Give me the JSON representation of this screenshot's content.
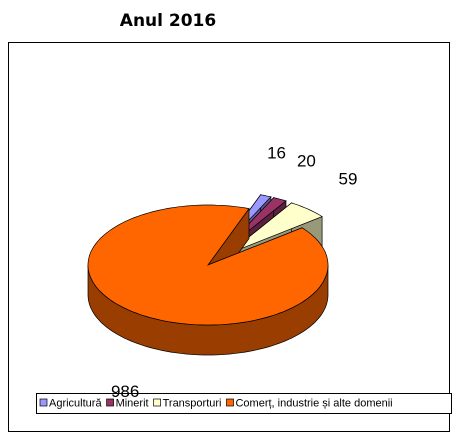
{
  "chart_data": {
    "type": "pie",
    "title": "Anul 2016",
    "categories": [
      "Agricultură",
      "Minerit",
      "Transporturi",
      "Comerț, industrie și alte domenii"
    ],
    "values": [
      16,
      20,
      59,
      986
    ],
    "colors": [
      "#9999ff",
      "#993366",
      "#ffffcc",
      "#ff6600"
    ],
    "legend": "bottom"
  }
}
